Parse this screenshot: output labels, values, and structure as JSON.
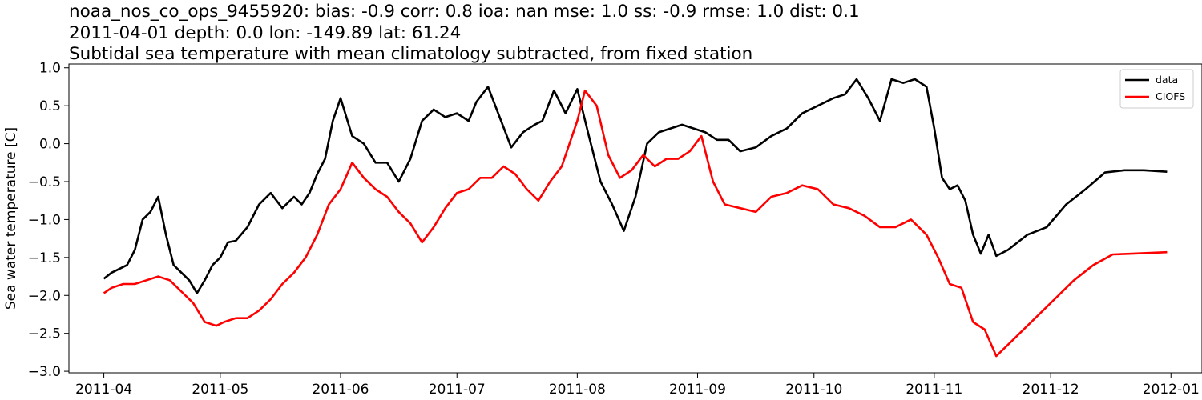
{
  "chart_data": {
    "type": "line",
    "title_lines": [
      "noaa_nos_co_ops_9455920: bias: -0.9  corr: 0.8  ioa: nan  mse: 1.0  ss: -0.9  rmse: 1.0  dist: 0.1",
      "2011-04-01 depth: 0.0 lon: -149.89 lat: 61.24",
      "Subtidal sea temperature with mean climatology subtracted, from fixed station"
    ],
    "xlabel": "",
    "ylabel": "Sea water temperature [C]",
    "xlim": [
      "2011-03-23",
      "2012-01-09"
    ],
    "ylim": [
      -3.02,
      1.05
    ],
    "x_ticks": [
      "2011-04",
      "2011-05",
      "2011-06",
      "2011-07",
      "2011-08",
      "2011-09",
      "2011-10",
      "2011-11",
      "2011-12",
      "2012-01"
    ],
    "x_tick_dates": [
      "2011-04-01",
      "2011-05-01",
      "2011-06-01",
      "2011-07-01",
      "2011-08-01",
      "2011-09-01",
      "2011-10-01",
      "2011-11-01",
      "2011-12-01",
      "2012-01-01"
    ],
    "y_ticks": [
      "1.0",
      "0.5",
      "0.0",
      "−0.5",
      "−1.0",
      "−1.5",
      "−2.0",
      "−2.5",
      "−3.0"
    ],
    "y_tick_values": [
      1.0,
      0.5,
      0.0,
      -0.5,
      -1.0,
      -1.5,
      -2.0,
      -2.5,
      -3.0
    ],
    "grid": false,
    "legend": "top-right",
    "series": [
      {
        "name": "data",
        "color": "#000000",
        "x": [
          "2011-04-01",
          "2011-04-03",
          "2011-04-05",
          "2011-04-07",
          "2011-04-09",
          "2011-04-11",
          "2011-04-13",
          "2011-04-15",
          "2011-04-17",
          "2011-04-19",
          "2011-04-21",
          "2011-04-23",
          "2011-04-25",
          "2011-04-27",
          "2011-04-29",
          "2011-05-01",
          "2011-05-03",
          "2011-05-05",
          "2011-05-08",
          "2011-05-11",
          "2011-05-14",
          "2011-05-17",
          "2011-05-20",
          "2011-05-22",
          "2011-05-24",
          "2011-05-26",
          "2011-05-28",
          "2011-05-30",
          "2011-06-01",
          "2011-06-04",
          "2011-06-07",
          "2011-06-10",
          "2011-06-13",
          "2011-06-16",
          "2011-06-19",
          "2011-06-22",
          "2011-06-25",
          "2011-06-28",
          "2011-07-01",
          "2011-07-04",
          "2011-07-06",
          "2011-07-09",
          "2011-07-12",
          "2011-07-15",
          "2011-07-18",
          "2011-07-21",
          "2011-07-23",
          "2011-07-26",
          "2011-07-29",
          "2011-08-01",
          "2011-08-04",
          "2011-08-07",
          "2011-08-10",
          "2011-08-13",
          "2011-08-16",
          "2011-08-19",
          "2011-08-22",
          "2011-08-25",
          "2011-08-28",
          "2011-08-31",
          "2011-09-03",
          "2011-09-06",
          "2011-09-09",
          "2011-09-12",
          "2011-09-16",
          "2011-09-20",
          "2011-09-24",
          "2011-09-28",
          "2011-10-02",
          "2011-10-06",
          "2011-10-09",
          "2011-10-12",
          "2011-10-15",
          "2011-10-18",
          "2011-10-21",
          "2011-10-24",
          "2011-10-27",
          "2011-10-30",
          "2011-11-01",
          "2011-11-03",
          "2011-11-05",
          "2011-11-07",
          "2011-11-09",
          "2011-11-11",
          "2011-11-13",
          "2011-11-15",
          "2011-11-17",
          "2011-11-20",
          "2011-11-25",
          "2011-11-30",
          "2011-12-05",
          "2011-12-10",
          "2011-12-15",
          "2011-12-20",
          "2011-12-25",
          "2011-12-31"
        ],
        "y": [
          -1.78,
          -1.7,
          -1.65,
          -1.6,
          -1.4,
          -1.0,
          -0.9,
          -0.7,
          -1.2,
          -1.6,
          -1.7,
          -1.8,
          -1.97,
          -1.8,
          -1.6,
          -1.5,
          -1.3,
          -1.28,
          -1.1,
          -0.8,
          -0.65,
          -0.85,
          -0.7,
          -0.8,
          -0.65,
          -0.4,
          -0.2,
          0.3,
          0.6,
          0.1,
          0.0,
          -0.25,
          -0.25,
          -0.5,
          -0.2,
          0.3,
          0.45,
          0.35,
          0.4,
          0.3,
          0.55,
          0.75,
          0.35,
          -0.05,
          0.15,
          0.25,
          0.3,
          0.7,
          0.4,
          0.72,
          0.1,
          -0.5,
          -0.8,
          -1.15,
          -0.7,
          0.0,
          0.15,
          0.2,
          0.25,
          0.2,
          0.15,
          0.05,
          0.05,
          -0.1,
          -0.05,
          0.1,
          0.2,
          0.4,
          0.5,
          0.6,
          0.65,
          0.85,
          0.6,
          0.3,
          0.85,
          0.8,
          0.85,
          0.75,
          0.2,
          -0.45,
          -0.6,
          -0.55,
          -0.75,
          -1.2,
          -1.45,
          -1.2,
          -1.48,
          -1.4,
          -1.2,
          -1.1,
          -0.8,
          -0.6,
          -0.38,
          -0.35,
          -0.35,
          -0.37
        ]
      },
      {
        "name": "CIOFS",
        "color": "#ff0000",
        "x": [
          "2011-04-01",
          "2011-04-03",
          "2011-04-06",
          "2011-04-09",
          "2011-04-12",
          "2011-04-15",
          "2011-04-18",
          "2011-04-21",
          "2011-04-24",
          "2011-04-27",
          "2011-04-30",
          "2011-05-02",
          "2011-05-05",
          "2011-05-08",
          "2011-05-11",
          "2011-05-14",
          "2011-05-17",
          "2011-05-20",
          "2011-05-23",
          "2011-05-26",
          "2011-05-29",
          "2011-06-01",
          "2011-06-04",
          "2011-06-07",
          "2011-06-10",
          "2011-06-13",
          "2011-06-16",
          "2011-06-19",
          "2011-06-22",
          "2011-06-25",
          "2011-06-28",
          "2011-07-01",
          "2011-07-04",
          "2011-07-07",
          "2011-07-10",
          "2011-07-13",
          "2011-07-16",
          "2011-07-19",
          "2011-07-22",
          "2011-07-25",
          "2011-07-28",
          "2011-08-01",
          "2011-08-03",
          "2011-08-06",
          "2011-08-09",
          "2011-08-12",
          "2011-08-15",
          "2011-08-18",
          "2011-08-21",
          "2011-08-24",
          "2011-08-27",
          "2011-08-30",
          "2011-09-02",
          "2011-09-05",
          "2011-09-08",
          "2011-09-12",
          "2011-09-16",
          "2011-09-20",
          "2011-09-24",
          "2011-09-28",
          "2011-10-02",
          "2011-10-06",
          "2011-10-10",
          "2011-10-14",
          "2011-10-18",
          "2011-10-22",
          "2011-10-26",
          "2011-10-30",
          "2011-11-02",
          "2011-11-05",
          "2011-11-08",
          "2011-11-11",
          "2011-11-14",
          "2011-11-17",
          "2011-11-22",
          "2011-11-27",
          "2011-12-02",
          "2011-12-07",
          "2011-12-12",
          "2011-12-17",
          "2011-12-22",
          "2011-12-31"
        ],
        "y": [
          -1.97,
          -1.9,
          -1.85,
          -1.85,
          -1.8,
          -1.75,
          -1.8,
          -1.95,
          -2.1,
          -2.35,
          -2.4,
          -2.35,
          -2.3,
          -2.3,
          -2.2,
          -2.05,
          -1.85,
          -1.7,
          -1.5,
          -1.2,
          -0.8,
          -0.6,
          -0.25,
          -0.45,
          -0.6,
          -0.7,
          -0.9,
          -1.05,
          -1.3,
          -1.1,
          -0.85,
          -0.65,
          -0.6,
          -0.45,
          -0.45,
          -0.3,
          -0.4,
          -0.6,
          -0.75,
          -0.5,
          -0.3,
          0.3,
          0.7,
          0.5,
          -0.15,
          -0.45,
          -0.35,
          -0.15,
          -0.3,
          -0.2,
          -0.2,
          -0.1,
          0.1,
          -0.5,
          -0.8,
          -0.85,
          -0.9,
          -0.7,
          -0.65,
          -0.55,
          -0.6,
          -0.8,
          -0.85,
          -0.95,
          -1.1,
          -1.1,
          -1.0,
          -1.2,
          -1.5,
          -1.85,
          -1.9,
          -2.35,
          -2.45,
          -2.8,
          -2.55,
          -2.3,
          -2.05,
          -1.8,
          -1.6,
          -1.46,
          -1.45,
          -1.43
        ]
      }
    ]
  }
}
